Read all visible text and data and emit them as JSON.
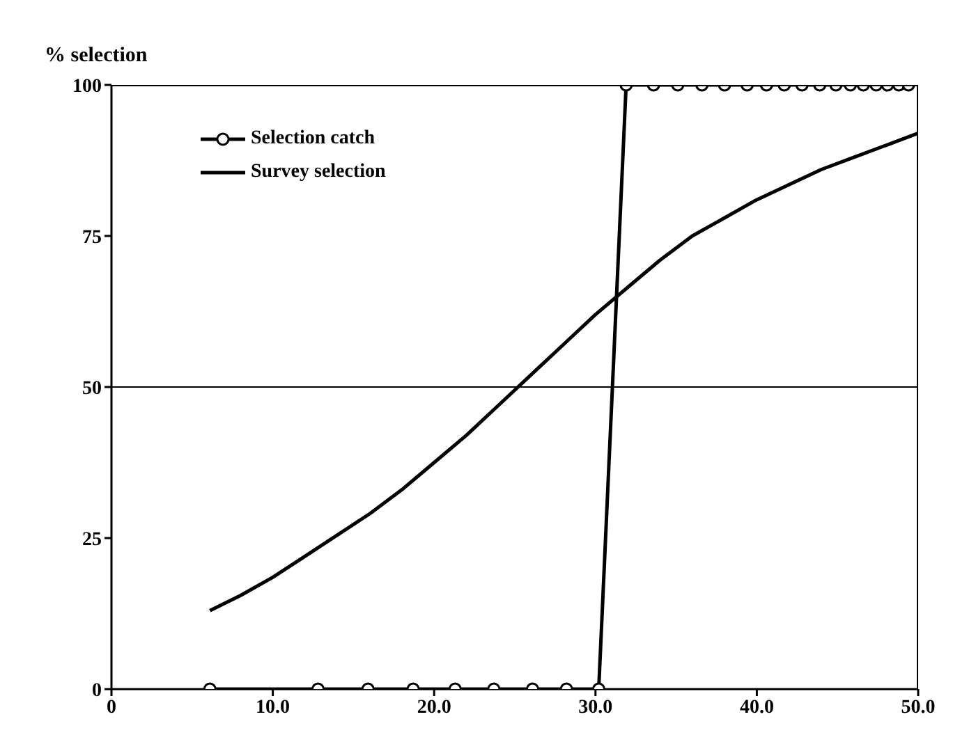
{
  "chart_data": {
    "type": "line",
    "ylabel": "% selection",
    "xlim": [
      0,
      50
    ],
    "xticks": [
      0,
      {
        "value": 10,
        "label": "10.0"
      },
      {
        "value": 20,
        "label": "20.0"
      },
      {
        "value": 30,
        "label": "30.0"
      },
      {
        "value": 40,
        "label": "40.0"
      },
      {
        "value": 50,
        "label": "50.0"
      }
    ],
    "ylim": [
      0,
      100
    ],
    "yticks": [
      0,
      25,
      50,
      75,
      100
    ],
    "grid": false,
    "legend": "top left",
    "line_style": "solid",
    "ref_lines": [
      {
        "axis": "y",
        "value": 50,
        "color": "#000000"
      }
    ],
    "series": [
      {
        "name": "Selection catch",
        "color": "#000000",
        "marker": "circle",
        "x": [
          6.1,
          12.8,
          15.9,
          18.7,
          21.3,
          23.7,
          26.1,
          28.2,
          30.2,
          31.9,
          33.6,
          35.1,
          36.6,
          38.0,
          39.4,
          40.6,
          41.7,
          42.8,
          43.9,
          44.9,
          45.8,
          46.6,
          47.4,
          48.1,
          48.8,
          49.4
        ],
        "values": [
          0,
          0,
          0,
          0,
          0,
          0,
          0,
          0,
          0,
          100,
          100,
          100,
          100,
          100,
          100,
          100,
          100,
          100,
          100,
          100,
          100,
          100,
          100,
          100,
          100,
          100
        ]
      },
      {
        "name": "Survey selection",
        "color": "#000000",
        "marker": "none",
        "x": [
          6.1,
          8,
          10,
          12,
          14,
          16,
          18,
          20,
          22,
          24,
          26,
          28,
          30,
          32,
          34,
          36,
          38,
          40,
          42,
          44,
          46,
          48,
          50
        ],
        "values": [
          13,
          15.5,
          18.5,
          22,
          25.5,
          29,
          33,
          37.5,
          42,
          47,
          52,
          57,
          62,
          66.5,
          71,
          75,
          78,
          81,
          83.5,
          86,
          88,
          90,
          92
        ]
      }
    ]
  }
}
